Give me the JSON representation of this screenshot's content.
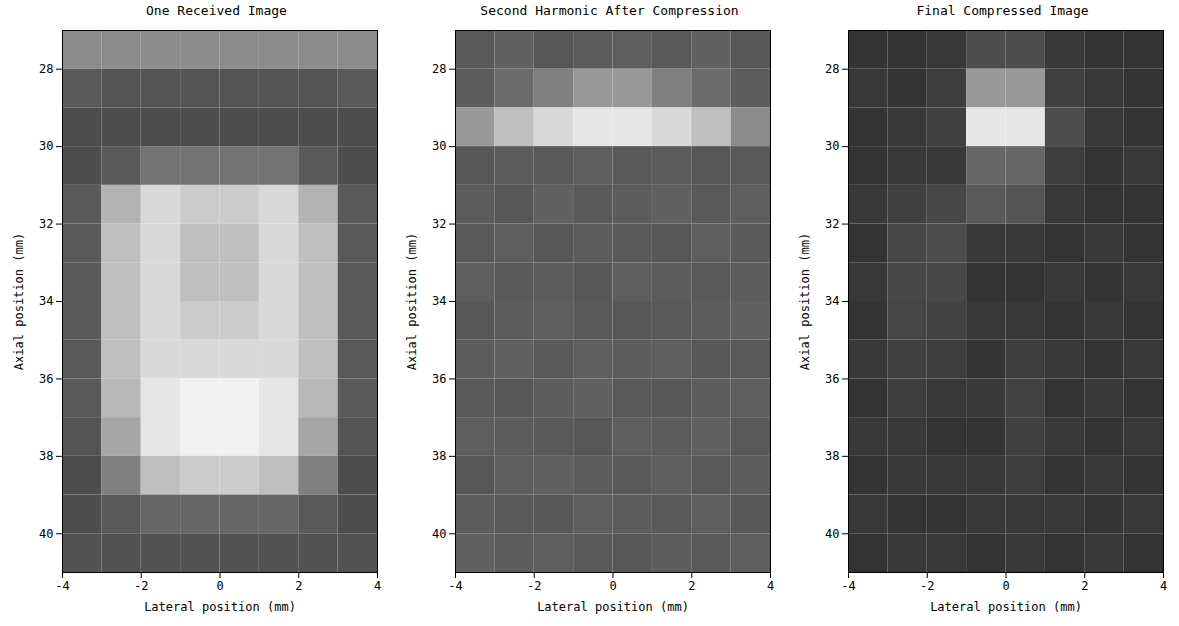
{
  "chart_data": [
    {
      "type": "heatmap",
      "title": "One Received Image",
      "x_label": "Lateral position (mm)",
      "y_label": "Axial position (mm)",
      "xlim": [
        -4,
        4
      ],
      "ylim": [
        27,
        41
      ],
      "xticks": [
        -4,
        -2,
        0,
        2,
        4
      ],
      "yticks": [
        28,
        30,
        32,
        34,
        36,
        38,
        40
      ],
      "x_edges": [
        -4,
        -3,
        -2,
        -1,
        0,
        1,
        2,
        3,
        4
      ],
      "y_edges": [
        27,
        28,
        29,
        30,
        31,
        32,
        33,
        34,
        35,
        36,
        37,
        38,
        39,
        40,
        41
      ],
      "value_range": [
        0,
        1
      ],
      "cells": [
        [
          0.55,
          0.55,
          0.55,
          0.55,
          0.55,
          0.55,
          0.55,
          0.55
        ],
        [
          0.35,
          0.33,
          0.33,
          0.33,
          0.33,
          0.33,
          0.33,
          0.35
        ],
        [
          0.3,
          0.3,
          0.3,
          0.3,
          0.3,
          0.3,
          0.3,
          0.3
        ],
        [
          0.3,
          0.35,
          0.45,
          0.45,
          0.45,
          0.45,
          0.35,
          0.3
        ],
        [
          0.35,
          0.7,
          0.85,
          0.8,
          0.8,
          0.85,
          0.7,
          0.35
        ],
        [
          0.35,
          0.75,
          0.85,
          0.75,
          0.75,
          0.85,
          0.75,
          0.35
        ],
        [
          0.35,
          0.75,
          0.85,
          0.75,
          0.75,
          0.85,
          0.75,
          0.35
        ],
        [
          0.35,
          0.75,
          0.85,
          0.8,
          0.8,
          0.85,
          0.75,
          0.35
        ],
        [
          0.35,
          0.75,
          0.85,
          0.85,
          0.85,
          0.85,
          0.75,
          0.35
        ],
        [
          0.35,
          0.72,
          0.9,
          0.95,
          0.95,
          0.9,
          0.72,
          0.35
        ],
        [
          0.33,
          0.65,
          0.9,
          0.95,
          0.95,
          0.9,
          0.65,
          0.33
        ],
        [
          0.3,
          0.5,
          0.75,
          0.8,
          0.8,
          0.75,
          0.5,
          0.3
        ],
        [
          0.3,
          0.35,
          0.4,
          0.4,
          0.4,
          0.4,
          0.35,
          0.3
        ],
        [
          0.32,
          0.32,
          0.32,
          0.32,
          0.32,
          0.32,
          0.32,
          0.32
        ]
      ]
    },
    {
      "type": "heatmap",
      "title": "Second Harmonic After Compression",
      "x_label": "Lateral position (mm)",
      "y_label": "Axial position (mm)",
      "xlim": [
        -4,
        4
      ],
      "ylim": [
        27,
        41
      ],
      "xticks": [
        -4,
        -2,
        0,
        2,
        4
      ],
      "yticks": [
        28,
        30,
        32,
        34,
        36,
        38,
        40
      ],
      "x_edges": [
        -4,
        -3,
        -2,
        -1,
        0,
        1,
        2,
        3,
        4
      ],
      "y_edges": [
        27,
        28,
        29,
        30,
        31,
        32,
        33,
        34,
        35,
        36,
        37,
        38,
        39,
        40,
        41
      ],
      "value_range": [
        0,
        1
      ],
      "cells": [
        [
          0.35,
          0.38,
          0.34,
          0.36,
          0.37,
          0.35,
          0.38,
          0.34
        ],
        [
          0.36,
          0.42,
          0.5,
          0.6,
          0.6,
          0.5,
          0.42,
          0.36
        ],
        [
          0.6,
          0.75,
          0.85,
          0.9,
          0.9,
          0.85,
          0.75,
          0.55
        ],
        [
          0.34,
          0.36,
          0.35,
          0.37,
          0.35,
          0.36,
          0.34,
          0.35
        ],
        [
          0.36,
          0.34,
          0.38,
          0.35,
          0.36,
          0.38,
          0.35,
          0.37
        ],
        [
          0.35,
          0.37,
          0.34,
          0.36,
          0.35,
          0.34,
          0.37,
          0.35
        ],
        [
          0.37,
          0.35,
          0.36,
          0.34,
          0.37,
          0.36,
          0.35,
          0.36
        ],
        [
          0.34,
          0.36,
          0.37,
          0.35,
          0.34,
          0.35,
          0.36,
          0.38
        ],
        [
          0.36,
          0.38,
          0.35,
          0.37,
          0.36,
          0.37,
          0.34,
          0.35
        ],
        [
          0.35,
          0.34,
          0.36,
          0.38,
          0.35,
          0.34,
          0.36,
          0.37
        ],
        [
          0.37,
          0.36,
          0.35,
          0.34,
          0.37,
          0.36,
          0.38,
          0.35
        ],
        [
          0.34,
          0.37,
          0.38,
          0.36,
          0.35,
          0.37,
          0.35,
          0.36
        ],
        [
          0.36,
          0.35,
          0.34,
          0.37,
          0.36,
          0.35,
          0.37,
          0.34
        ],
        [
          0.38,
          0.36,
          0.37,
          0.35,
          0.34,
          0.36,
          0.35,
          0.37
        ]
      ]
    },
    {
      "type": "heatmap",
      "title": "Final Compressed Image",
      "x_label": "Lateral position (mm)",
      "y_label": "Axial position (mm)",
      "xlim": [
        -4,
        4
      ],
      "ylim": [
        27,
        41
      ],
      "xticks": [
        -4,
        -2,
        0,
        2,
        4
      ],
      "yticks": [
        28,
        30,
        32,
        34,
        36,
        38,
        40
      ],
      "x_edges": [
        -4,
        -3,
        -2,
        -1,
        0,
        1,
        2,
        3,
        4
      ],
      "y_edges": [
        27,
        28,
        29,
        30,
        31,
        32,
        33,
        34,
        35,
        36,
        37,
        38,
        39,
        40,
        41
      ],
      "value_range": [
        0,
        1
      ],
      "cells": [
        [
          0.2,
          0.2,
          0.22,
          0.3,
          0.3,
          0.22,
          0.2,
          0.2
        ],
        [
          0.22,
          0.2,
          0.24,
          0.6,
          0.6,
          0.25,
          0.22,
          0.2
        ],
        [
          0.2,
          0.22,
          0.25,
          0.9,
          0.9,
          0.3,
          0.22,
          0.2
        ],
        [
          0.2,
          0.22,
          0.22,
          0.4,
          0.4,
          0.24,
          0.2,
          0.22
        ],
        [
          0.22,
          0.25,
          0.28,
          0.35,
          0.33,
          0.22,
          0.2,
          0.2
        ],
        [
          0.2,
          0.28,
          0.3,
          0.22,
          0.22,
          0.2,
          0.22,
          0.2
        ],
        [
          0.22,
          0.28,
          0.28,
          0.2,
          0.2,
          0.22,
          0.2,
          0.22
        ],
        [
          0.2,
          0.27,
          0.26,
          0.22,
          0.22,
          0.2,
          0.22,
          0.2
        ],
        [
          0.22,
          0.25,
          0.24,
          0.2,
          0.24,
          0.22,
          0.2,
          0.22
        ],
        [
          0.2,
          0.24,
          0.22,
          0.22,
          0.26,
          0.2,
          0.22,
          0.2
        ],
        [
          0.22,
          0.22,
          0.2,
          0.2,
          0.25,
          0.22,
          0.2,
          0.22
        ],
        [
          0.2,
          0.22,
          0.22,
          0.22,
          0.24,
          0.2,
          0.22,
          0.2
        ],
        [
          0.22,
          0.2,
          0.2,
          0.22,
          0.22,
          0.22,
          0.2,
          0.22
        ],
        [
          0.2,
          0.22,
          0.22,
          0.2,
          0.22,
          0.2,
          0.22,
          0.2
        ]
      ]
    }
  ]
}
